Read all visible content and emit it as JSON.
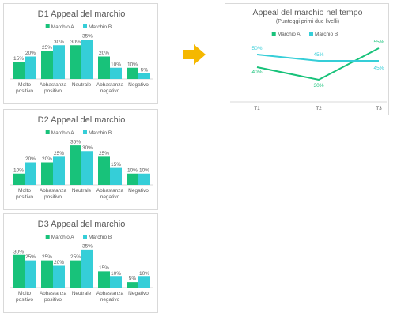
{
  "colors": {
    "series_a": "#18c27a",
    "series_b": "#35ced8",
    "arrow": "#f5b800",
    "axis": "#d9d9d9",
    "text": "#595959",
    "label": "#595959"
  },
  "arrow_icon": "right-arrow-icon",
  "chart_data": [
    {
      "type": "bar",
      "title": "D1 Appeal del marchio",
      "categories": [
        [
          "Molto",
          "positivo"
        ],
        [
          "Abbastanza",
          "positivo"
        ],
        [
          "Neutrale"
        ],
        [
          "Abbastanza",
          "negativo"
        ],
        [
          "Negativo"
        ]
      ],
      "series": [
        {
          "name": "Marchio A",
          "values": [
            15,
            25,
            30,
            20,
            10
          ]
        },
        {
          "name": "Marchio B",
          "values": [
            20,
            30,
            35,
            10,
            5
          ]
        }
      ],
      "ylim": [
        0,
        40
      ],
      "legend": "top",
      "grid": false,
      "value_suffix": "%"
    },
    {
      "type": "bar",
      "title": "D2 Appeal del marchio",
      "categories": [
        [
          "Molto",
          "positivo"
        ],
        [
          "Abbastanza",
          "positivo"
        ],
        [
          "Neutrale"
        ],
        [
          "Abbastanza",
          "negativo"
        ],
        [
          "Negativo"
        ]
      ],
      "series": [
        {
          "name": "Marchio A",
          "values": [
            10,
            20,
            35,
            25,
            10
          ]
        },
        {
          "name": "Marchio B",
          "values": [
            20,
            25,
            30,
            15,
            10
          ]
        }
      ],
      "ylim": [
        0,
        40
      ],
      "legend": "top",
      "grid": false,
      "value_suffix": "%"
    },
    {
      "type": "bar",
      "title": "D3 Appeal del marchio",
      "categories": [
        [
          "Molto",
          "positivo"
        ],
        [
          "Abbastanza",
          "positivo"
        ],
        [
          "Neutrale"
        ],
        [
          "Abbastanza",
          "negativo"
        ],
        [
          "Negativo"
        ]
      ],
      "series": [
        {
          "name": "Marchio A",
          "values": [
            30,
            25,
            25,
            15,
            5
          ]
        },
        {
          "name": "Marchio B",
          "values": [
            25,
            20,
            35,
            10,
            10
          ]
        }
      ],
      "ylim": [
        0,
        40
      ],
      "legend": "top",
      "grid": false,
      "value_suffix": "%"
    },
    {
      "type": "line",
      "title": "Appeal del marchio nel tempo",
      "subtitle": "(Punteggi primi due livelli)",
      "categories": [
        "T1",
        "T2",
        "T3"
      ],
      "series": [
        {
          "name": "Marchio A",
          "values": [
            40,
            30,
            55
          ]
        },
        {
          "name": "Marchio B",
          "values": [
            50,
            45,
            45
          ]
        }
      ],
      "ylim": [
        25,
        60
      ],
      "legend": "top",
      "grid": false,
      "value_suffix": "%"
    }
  ]
}
